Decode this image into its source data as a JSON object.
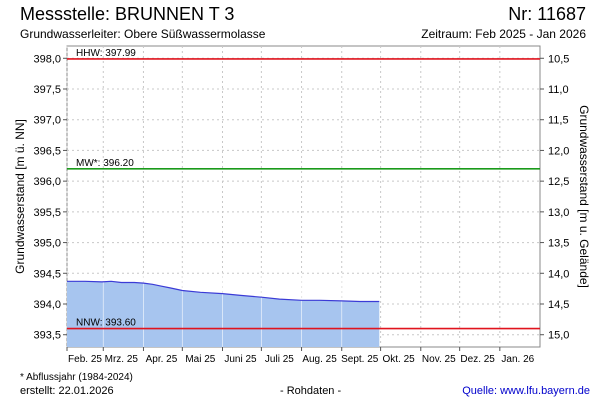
{
  "header": {
    "title": "Messstelle: BRUNNEN T 3",
    "nr": "Nr: 11687",
    "aquifer": "Grundwasserleiter:   Obere Süßwassermolasse",
    "period": "Zeitraum: Feb 2025 - Jan 2026"
  },
  "footer": {
    "footnote": "* Abflussjahr (1984-2024)",
    "created": "erstellt:  22.01.2026",
    "rawdata": "- Rohdaten -",
    "source": "Quelle: www.lfu.bayern.de"
  },
  "colors": {
    "area_fill": "#a7c5ef",
    "line": "#3b3bd6",
    "hhw": "#e0141e",
    "mw": "#1a9a1a",
    "nnw": "#e0141e",
    "grid": "#c8c8c8"
  },
  "chart_data": {
    "type": "area",
    "ylabel": "Grundwasserstand [m ü. NN]",
    "y2label": "Grundwasserstand [m u. Gelände]",
    "ylim": [
      393.3,
      398.2
    ],
    "y_ticks": [
      "398,0",
      "397,5",
      "397,0",
      "396,5",
      "396,0",
      "395,5",
      "395,0",
      "394,5",
      "394,0",
      "393,5"
    ],
    "y_tick_values": [
      398.0,
      397.5,
      397.0,
      396.5,
      396.0,
      395.5,
      395.0,
      394.5,
      394.0,
      393.5
    ],
    "y2_ticks": [
      "10,5",
      "11,0",
      "11,5",
      "12,0",
      "12,5",
      "13,0",
      "13,5",
      "14,0",
      "14,5",
      "15,0"
    ],
    "y2_tick_values": [
      398.0,
      397.5,
      397.0,
      396.5,
      396.0,
      395.5,
      395.0,
      394.5,
      394.0,
      393.5
    ],
    "x_ticks": [
      "Feb. 25",
      "Mrz. 25",
      "Apr. 25",
      "Mai 25",
      "Juni 25",
      "Juli 25",
      "Aug. 25",
      "Sept. 25",
      "Okt. 25",
      "Nov. 25",
      "Dez. 25",
      "Jan. 26"
    ],
    "x_tick_dates": [
      "2025-02-01",
      "2025-03-01",
      "2025-04-01",
      "2025-05-01",
      "2025-06-01",
      "2025-07-01",
      "2025-08-01",
      "2025-09-01",
      "2025-10-01",
      "2025-11-01",
      "2025-12-01",
      "2026-01-01"
    ],
    "x_range": [
      "2025-02-01",
      "2026-02-01"
    ],
    "grid": true,
    "reference_lines": [
      {
        "label": "HHW: 397.99",
        "value": 397.99,
        "color": "#e0141e"
      },
      {
        "label": "MW*: 396.20",
        "value": 396.2,
        "color": "#1a9a1a"
      },
      {
        "label": "NNW: 393.60",
        "value": 393.6,
        "color": "#e0141e"
      }
    ],
    "series": [
      {
        "x": [
          "2025-02-01",
          "2025-02-15",
          "2025-02-28",
          "2025-03-07",
          "2025-03-15",
          "2025-03-25",
          "2025-04-01",
          "2025-04-08",
          "2025-04-15",
          "2025-04-22",
          "2025-05-01",
          "2025-05-15",
          "2025-06-01",
          "2025-06-15",
          "2025-07-01",
          "2025-07-15",
          "2025-08-01",
          "2025-08-15",
          "2025-09-01",
          "2025-09-15",
          "2025-09-30"
        ],
        "y": [
          394.37,
          394.37,
          394.36,
          394.37,
          394.35,
          394.35,
          394.34,
          394.32,
          394.29,
          394.26,
          394.22,
          394.19,
          394.17,
          394.14,
          394.11,
          394.08,
          394.06,
          394.06,
          394.05,
          394.04,
          394.04
        ]
      }
    ]
  }
}
